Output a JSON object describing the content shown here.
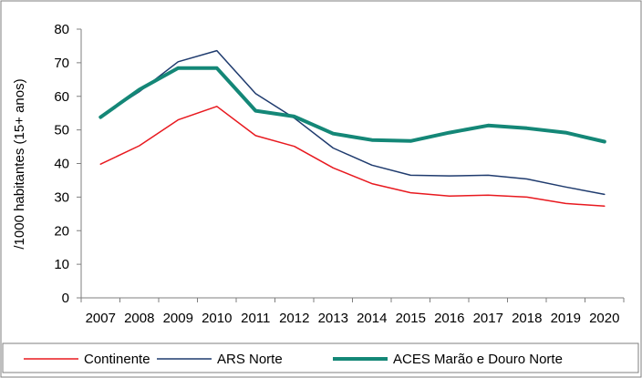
{
  "chart_data": {
    "type": "line",
    "title": "",
    "xlabel": "",
    "ylabel": "/1000 habitantes (15+ anos)",
    "ylim": [
      0,
      80
    ],
    "yticks": [
      0,
      10,
      20,
      30,
      40,
      50,
      60,
      70,
      80
    ],
    "grid": false,
    "legend_position": "bottom",
    "categories": [
      "2007",
      "2008",
      "2009",
      "2010",
      "2011",
      "2012",
      "2013",
      "2014",
      "2015",
      "2016",
      "2017",
      "2018",
      "2019",
      "2020"
    ],
    "series": [
      {
        "name": "Continente",
        "color": "#e8191f",
        "values": [
          39.8,
          45.3,
          53.0,
          57.0,
          48.3,
          45.1,
          38.7,
          34.0,
          31.3,
          30.3,
          30.6,
          30.0,
          28.1,
          27.3
        ]
      },
      {
        "name": "ARS Norte",
        "color": "#1f3b6e",
        "values": [
          54.0,
          61.4,
          70.3,
          73.6,
          60.8,
          53.5,
          44.6,
          39.5,
          36.5,
          36.3,
          36.5,
          35.4,
          33.0,
          30.8
        ]
      },
      {
        "name": "ACES Marão e Douro Norte",
        "color": "#148777",
        "values": [
          53.8,
          62.0,
          68.4,
          68.4,
          55.7,
          54.0,
          48.9,
          47.0,
          46.7,
          49.2,
          51.3,
          50.5,
          49.2,
          46.5
        ]
      }
    ]
  }
}
